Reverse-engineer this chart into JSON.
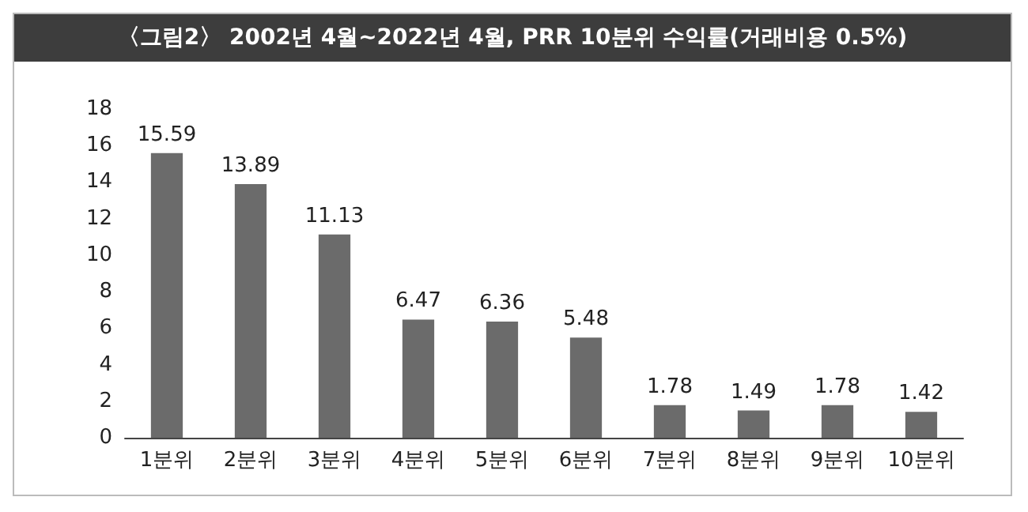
{
  "chart_data": {
    "type": "bar",
    "title": "〈그림2〉 2002년 4월~2022년 4월, PRR 10분위 수익률(거래비용 0.5%)",
    "categories": [
      "1분위",
      "2분위",
      "3분위",
      "4분위",
      "5분위",
      "6분위",
      "7분위",
      "8분위",
      "9분위",
      "10분위"
    ],
    "values": [
      15.59,
      13.89,
      11.13,
      6.47,
      6.36,
      5.48,
      1.78,
      1.49,
      1.78,
      1.42
    ],
    "color": "#6b6b6b",
    "ylim": [
      0,
      18
    ],
    "yticks": [
      0,
      2,
      4,
      6,
      8,
      10,
      12,
      14,
      16,
      18
    ],
    "grid": false,
    "data_labels": true
  }
}
